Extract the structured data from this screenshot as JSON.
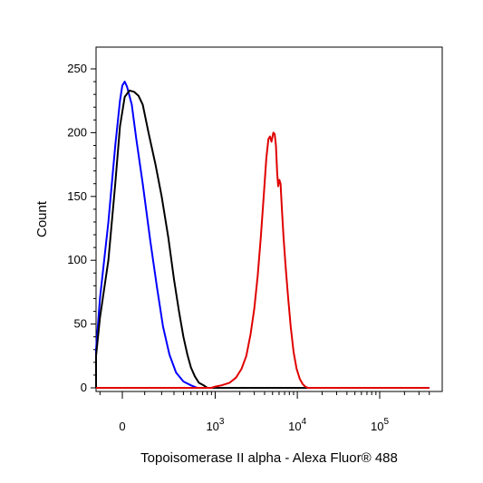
{
  "chart_data": {
    "type": "line",
    "title": "",
    "xlabel": "Topoisomerase II alpha - Alexa Fluor® 488",
    "ylabel": "Count",
    "x_scale": "biexponential",
    "ylim": [
      0,
      260
    ],
    "y_ticks": [
      0,
      50,
      100,
      150,
      200,
      250
    ],
    "x_ticks": [
      {
        "value": 0,
        "base": "0",
        "exp": ""
      },
      {
        "value": 1000,
        "base": "10",
        "exp": "3"
      },
      {
        "value": 10000,
        "base": "10",
        "exp": "4"
      },
      {
        "value": 100000,
        "base": "10",
        "exp": "5"
      }
    ],
    "grid": false,
    "legend": "none",
    "series": [
      {
        "color": "#0000ff",
        "points": [
          [
            -800,
            0
          ],
          [
            -600,
            0
          ],
          [
            -400,
            1
          ],
          [
            -300,
            3
          ],
          [
            -200,
            15
          ],
          [
            -150,
            30
          ],
          [
            -100,
            70
          ],
          [
            -60,
            130
          ],
          [
            -30,
            190
          ],
          [
            -10,
            225
          ],
          [
            0,
            237
          ],
          [
            10,
            240
          ],
          [
            20,
            236
          ],
          [
            40,
            222
          ],
          [
            60,
            195
          ],
          [
            90,
            160
          ],
          [
            130,
            115
          ],
          [
            170,
            78
          ],
          [
            210,
            48
          ],
          [
            260,
            26
          ],
          [
            320,
            12
          ],
          [
            400,
            5
          ],
          [
            500,
            2
          ],
          [
            600,
            0
          ],
          [
            700,
            0
          ],
          [
            1000,
            0
          ],
          [
            10000,
            0
          ],
          [
            100000,
            0
          ],
          [
            400000,
            0
          ]
        ]
      },
      {
        "color": "#000000",
        "points": [
          [
            -800,
            0
          ],
          [
            -600,
            0
          ],
          [
            -400,
            1
          ],
          [
            -300,
            3
          ],
          [
            -200,
            12
          ],
          [
            -150,
            25
          ],
          [
            -100,
            55
          ],
          [
            -60,
            100
          ],
          [
            -30,
            160
          ],
          [
            -10,
            205
          ],
          [
            10,
            228
          ],
          [
            30,
            233
          ],
          [
            50,
            232
          ],
          [
            70,
            229
          ],
          [
            90,
            222
          ],
          [
            120,
            200
          ],
          [
            160,
            175
          ],
          [
            200,
            150
          ],
          [
            250,
            118
          ],
          [
            300,
            85
          ],
          [
            350,
            60
          ],
          [
            400,
            40
          ],
          [
            450,
            26
          ],
          [
            500,
            16
          ],
          [
            560,
            9
          ],
          [
            630,
            4
          ],
          [
            720,
            2
          ],
          [
            800,
            0
          ],
          [
            1000,
            0
          ],
          [
            10000,
            0
          ],
          [
            100000,
            0
          ],
          [
            400000,
            0
          ]
        ]
      },
      {
        "color": "#e00000",
        "points": [
          [
            -800,
            0
          ],
          [
            -500,
            0
          ],
          [
            -200,
            0
          ],
          [
            0,
            0
          ],
          [
            200,
            0
          ],
          [
            500,
            0
          ],
          [
            700,
            0
          ],
          [
            900,
            0
          ],
          [
            1000,
            1
          ],
          [
            1200,
            2
          ],
          [
            1500,
            4
          ],
          [
            1800,
            8
          ],
          [
            2100,
            15
          ],
          [
            2400,
            25
          ],
          [
            2700,
            42
          ],
          [
            3000,
            62
          ],
          [
            3300,
            88
          ],
          [
            3600,
            118
          ],
          [
            3900,
            150
          ],
          [
            4200,
            180
          ],
          [
            4450,
            195
          ],
          [
            4650,
            197
          ],
          [
            4850,
            193
          ],
          [
            5100,
            200
          ],
          [
            5300,
            199
          ],
          [
            5500,
            190
          ],
          [
            5700,
            168
          ],
          [
            5850,
            158
          ],
          [
            6050,
            163
          ],
          [
            6250,
            160
          ],
          [
            6500,
            140
          ],
          [
            6800,
            118
          ],
          [
            7200,
            95
          ],
          [
            7700,
            72
          ],
          [
            8300,
            48
          ],
          [
            9000,
            28
          ],
          [
            9800,
            15
          ],
          [
            10700,
            7
          ],
          [
            11600,
            3
          ],
          [
            12500,
            1
          ],
          [
            13500,
            0
          ],
          [
            20000,
            0
          ],
          [
            100000,
            0
          ],
          [
            400000,
            0
          ]
        ]
      }
    ]
  }
}
